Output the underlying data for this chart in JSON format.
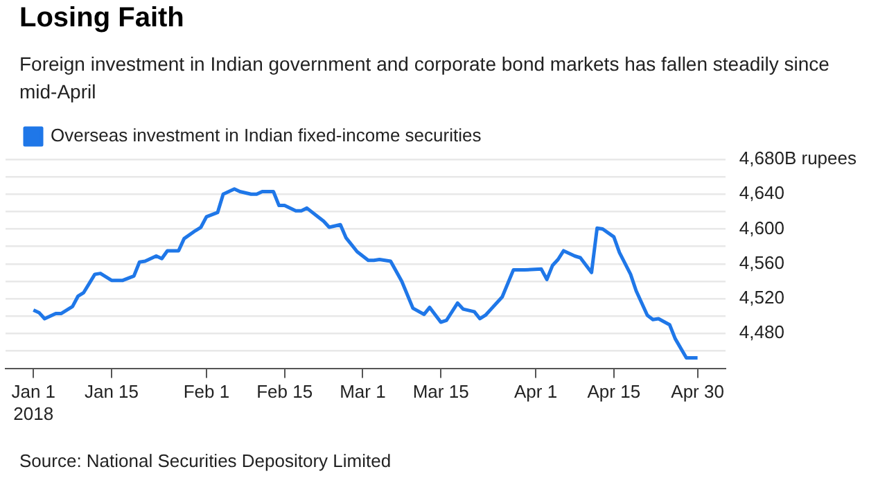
{
  "chart_data": {
    "type": "line",
    "title": "Losing Faith",
    "subtitle": "Foreign investment in Indian government and corporate bond markets has fallen steadily since mid-April",
    "x": [
      "2018-01-01",
      "2018-01-02",
      "2018-01-03",
      "2018-01-05",
      "2018-01-06",
      "2018-01-08",
      "2018-01-09",
      "2018-01-10",
      "2018-01-12",
      "2018-01-13",
      "2018-01-15",
      "2018-01-17",
      "2018-01-19",
      "2018-01-20",
      "2018-01-21",
      "2018-01-23",
      "2018-01-24",
      "2018-01-25",
      "2018-01-27",
      "2018-01-28",
      "2018-01-30",
      "2018-01-31",
      "2018-02-01",
      "2018-02-03",
      "2018-02-04",
      "2018-02-06",
      "2018-02-07",
      "2018-02-09",
      "2018-02-10",
      "2018-02-11",
      "2018-02-13",
      "2018-02-14",
      "2018-02-15",
      "2018-02-17",
      "2018-02-18",
      "2018-02-19",
      "2018-02-21",
      "2018-02-22",
      "2018-02-23",
      "2018-02-25",
      "2018-02-26",
      "2018-02-28",
      "2018-03-02",
      "2018-03-03",
      "2018-03-04",
      "2018-03-05",
      "2018-03-06",
      "2018-03-08",
      "2018-03-10",
      "2018-03-12",
      "2018-03-13",
      "2018-03-15",
      "2018-03-16",
      "2018-03-18",
      "2018-03-19",
      "2018-03-21",
      "2018-03-22",
      "2018-03-23",
      "2018-03-24",
      "2018-03-26",
      "2018-03-28",
      "2018-03-30",
      "2018-04-02",
      "2018-04-03",
      "2018-04-04",
      "2018-04-05",
      "2018-04-06",
      "2018-04-08",
      "2018-04-09",
      "2018-04-11",
      "2018-04-12",
      "2018-04-13",
      "2018-04-15",
      "2018-04-16",
      "2018-04-18",
      "2018-04-19",
      "2018-04-21",
      "2018-04-22",
      "2018-04-23",
      "2018-04-25",
      "2018-04-26",
      "2018-04-28",
      "2018-04-30"
    ],
    "series": [
      {
        "name": "Overseas investment in Indian fixed-income securities",
        "color": "#1f77e8",
        "values": [
          4507,
          4504,
          4497,
          4503,
          4503,
          4511,
          4523,
          4527,
          4548,
          4549,
          4541,
          4541,
          4546,
          4562,
          4563,
          4569,
          4566,
          4575,
          4575,
          4589,
          4598,
          4602,
          4614,
          4619,
          4640,
          4646,
          4643,
          4640,
          4640,
          4643,
          4643,
          4627,
          4627,
          4621,
          4621,
          4624,
          4614,
          4609,
          4602,
          4605,
          4590,
          4574,
          4564,
          4564,
          4565,
          4564,
          4563,
          4540,
          4509,
          4502,
          4510,
          4493,
          4495,
          4515,
          4508,
          4505,
          4497,
          4501,
          4508,
          4522,
          4553,
          4553,
          4554,
          4542,
          4558,
          4565,
          4575,
          4569,
          4567,
          4550,
          4601,
          4600,
          4591,
          4573,
          4548,
          4529,
          4501,
          4496,
          4497,
          4490,
          4474,
          4452,
          4452
        ]
      }
    ],
    "xlim": [
      "2017-12-27",
      "2018-05-05"
    ],
    "xticks": [
      {
        "value": "2018-01-01",
        "label": "Jan 1\n2018"
      },
      {
        "value": "2018-01-15",
        "label": "Jan 15"
      },
      {
        "value": "2018-02-01",
        "label": "Feb 1"
      },
      {
        "value": "2018-02-15",
        "label": "Feb 15"
      },
      {
        "value": "2018-03-01",
        "label": "Mar 1"
      },
      {
        "value": "2018-03-15",
        "label": "Mar 15"
      },
      {
        "value": "2018-04-01",
        "label": "Apr 1"
      },
      {
        "value": "2018-04-15",
        "label": "Apr 15"
      },
      {
        "value": "2018-04-30",
        "label": "Apr 30"
      }
    ],
    "ylim": [
      4440,
      4680
    ],
    "yticks": [
      {
        "value": 4460,
        "label": null
      },
      {
        "value": 4480,
        "label": "4,480"
      },
      {
        "value": 4500,
        "label": null
      },
      {
        "value": 4520,
        "label": "4,520"
      },
      {
        "value": 4540,
        "label": null
      },
      {
        "value": 4560,
        "label": "4,560"
      },
      {
        "value": 4580,
        "label": null
      },
      {
        "value": 4600,
        "label": "4,600"
      },
      {
        "value": 4620,
        "label": null
      },
      {
        "value": 4640,
        "label": "4,640"
      },
      {
        "value": 4660,
        "label": null
      },
      {
        "value": 4680,
        "label": "4,680B rupees"
      }
    ],
    "grid": "y",
    "legend": "top left",
    "marker": "none",
    "line_style": "solid",
    "annotations": [
      "Source: National Securities Depository Limited"
    ]
  }
}
